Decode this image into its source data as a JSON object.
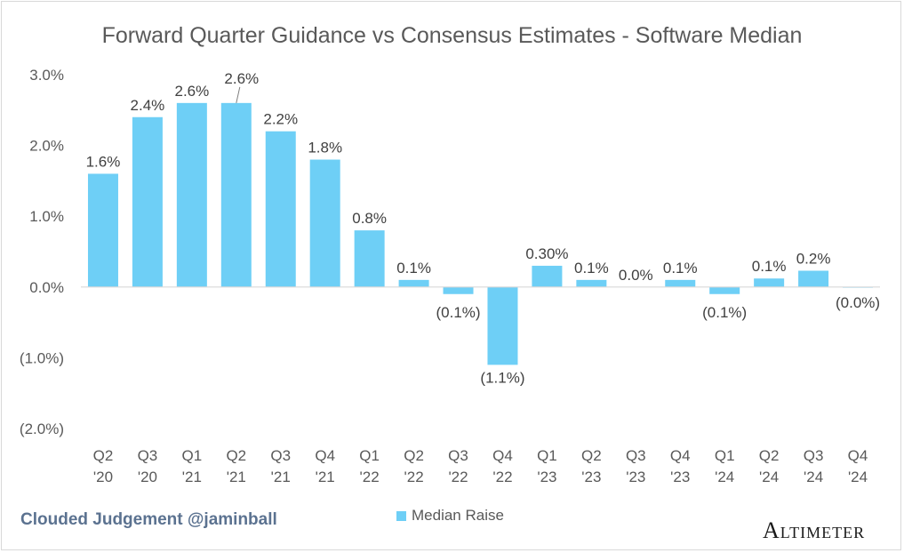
{
  "chart_data": {
    "type": "bar",
    "title": "Forward Quarter Guidance vs Consensus Estimates - Software Median",
    "categories": [
      [
        "Q2",
        "'20"
      ],
      [
        "Q3",
        "'20"
      ],
      [
        "Q1",
        "'21"
      ],
      [
        "Q2",
        "'21"
      ],
      [
        "Q3",
        "'21"
      ],
      [
        "Q4",
        "'21"
      ],
      [
        "Q1",
        "'22"
      ],
      [
        "Q2",
        "'22"
      ],
      [
        "Q3",
        "'22"
      ],
      [
        "Q4",
        "'22"
      ],
      [
        "Q1",
        "'23"
      ],
      [
        "Q2",
        "'23"
      ],
      [
        "Q3",
        "'23"
      ],
      [
        "Q4",
        "'23"
      ],
      [
        "Q1",
        "'24"
      ],
      [
        "Q2",
        "'24"
      ],
      [
        "Q3",
        "'24"
      ],
      [
        "Q4",
        "'24"
      ]
    ],
    "series": [
      {
        "name": "Median Raise",
        "values": [
          1.6,
          2.4,
          2.6,
          2.6,
          2.2,
          1.8,
          0.8,
          0.1,
          -0.1,
          -1.1,
          0.3,
          0.1,
          0.0,
          0.1,
          -0.1,
          0.12,
          0.23,
          -0.01
        ],
        "labels": [
          "1.6%",
          "2.4%",
          "2.6%",
          "2.6%",
          "2.2%",
          "1.8%",
          "0.8%",
          "0.1%",
          "(0.1%)",
          "(1.1%)",
          "0.30%",
          "0.1%",
          "0.0%",
          "0.1%",
          "(0.1%)",
          "0.1%",
          "0.2%",
          "(0.0%)"
        ]
      }
    ],
    "ylim": [
      -2.0,
      3.0
    ],
    "yticks": [
      3.0,
      2.0,
      1.0,
      0.0,
      -1.0,
      -2.0
    ],
    "ytick_labels": [
      "3.0%",
      "2.0%",
      "1.0%",
      "0.0%",
      "(1.0%)",
      "(2.0%)"
    ],
    "xlabel": "",
    "ylabel": "",
    "grid": false,
    "legend": "bottom-center",
    "bar_color": "#6ecff6"
  },
  "footer": {
    "attribution": "Clouded Judgement @jaminball",
    "brand": "Altimeter"
  }
}
